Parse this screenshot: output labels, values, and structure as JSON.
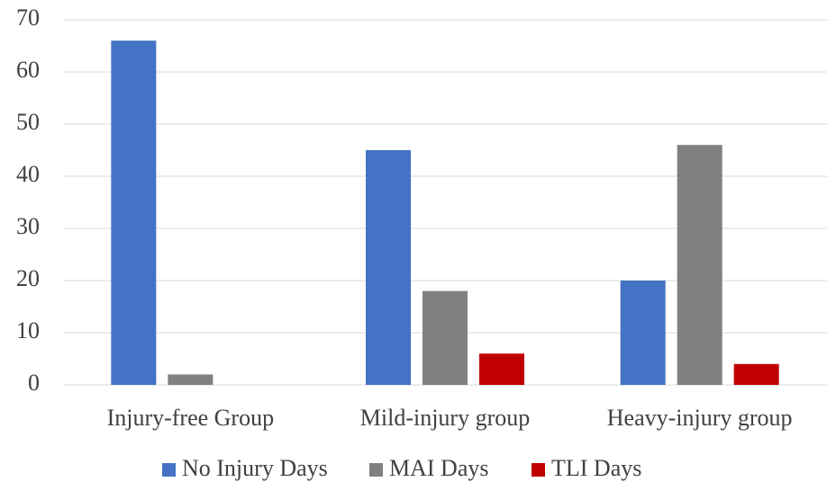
{
  "chart_data": {
    "type": "bar",
    "categories": [
      "Injury-free Group",
      "Mild-injury group",
      "Heavy-injury group"
    ],
    "series": [
      {
        "name": "No Injury Days",
        "color": "#4472c4",
        "values": [
          66,
          45,
          20
        ]
      },
      {
        "name": "MAI Days",
        "color": "#808080",
        "values": [
          2,
          18,
          46
        ]
      },
      {
        "name": "TLI Days",
        "color": "#c00000",
        "values": [
          0,
          6,
          4
        ]
      }
    ],
    "ylim": [
      0,
      70
    ],
    "yticks": [
      0,
      10,
      20,
      30,
      40,
      50,
      60,
      70
    ],
    "grid": true,
    "legend": "bottom"
  }
}
